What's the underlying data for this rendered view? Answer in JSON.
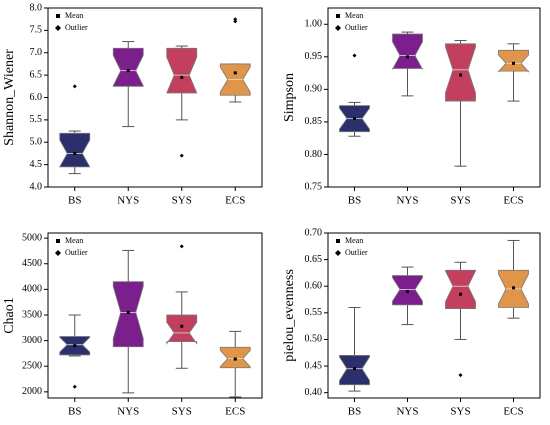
{
  "chart_data": [
    {
      "type": "box",
      "ylabel": "Shannon_Wiener",
      "legend": [
        "Mean",
        "Outlier"
      ],
      "categories": [
        "BS",
        "NYS",
        "SYS",
        "ECS"
      ],
      "colors": [
        "#2b2f6b",
        "#7b1f8c",
        "#c2405e",
        "#e0954a"
      ],
      "ylim": [
        4.0,
        8.0
      ],
      "yticks": [
        {
          "value": 4.0,
          "label": "4.0"
        },
        4.5,
        {
          "value": 5.0,
          "label": "5.0"
        },
        5.5,
        {
          "value": 6.0,
          "label": "6.0"
        },
        6.5,
        {
          "value": 7.0,
          "label": "7.0"
        },
        7.5,
        {
          "value": 8.0,
          "label": "8.0"
        }
      ],
      "boxes": [
        {
          "low": 4.3,
          "q1": 4.45,
          "median": 4.75,
          "q3": 5.2,
          "high": 5.25,
          "mean": 4.75,
          "outliers": [
            6.25
          ]
        },
        {
          "low": 5.35,
          "q1": 6.25,
          "median": 6.6,
          "q3": 7.1,
          "high": 7.25,
          "mean": 6.6,
          "outliers": []
        },
        {
          "low": 5.5,
          "q1": 6.1,
          "median": 6.5,
          "q3": 7.1,
          "high": 7.15,
          "mean": 6.45,
          "outliers": [
            4.7
          ]
        },
        {
          "low": 5.9,
          "q1": 6.05,
          "median": 6.4,
          "q3": 6.75,
          "high": 6.75,
          "mean": 6.55,
          "outliers": [
            7.7,
            7.75
          ]
        }
      ]
    },
    {
      "type": "box",
      "ylabel": "Simpson",
      "legend": [
        "Mean",
        "Outlier"
      ],
      "categories": [
        "BS",
        "NYS",
        "SYS",
        "ECS"
      ],
      "colors": [
        "#2b2f6b",
        "#7b1f8c",
        "#c2405e",
        "#e0954a"
      ],
      "ylim": [
        0.75,
        1.025
      ],
      "yticks": [
        0.75,
        {
          "value": 0.8,
          "label": "0.80"
        },
        0.85,
        {
          "value": 0.9,
          "label": "0.90"
        },
        0.95,
        {
          "value": 1.0,
          "label": "1.00"
        }
      ],
      "boxes": [
        {
          "low": 0.828,
          "q1": 0.835,
          "median": 0.855,
          "q3": 0.875,
          "high": 0.88,
          "mean": 0.855,
          "outliers": [
            0.952
          ]
        },
        {
          "low": 0.89,
          "q1": 0.932,
          "median": 0.952,
          "q3": 0.985,
          "high": 0.988,
          "mean": 0.95,
          "outliers": []
        },
        {
          "low": 0.782,
          "q1": 0.882,
          "median": 0.93,
          "q3": 0.97,
          "high": 0.975,
          "mean": 0.922,
          "outliers": []
        },
        {
          "low": 0.882,
          "q1": 0.928,
          "median": 0.94,
          "q3": 0.96,
          "high": 0.97,
          "mean": 0.94,
          "outliers": []
        }
      ]
    },
    {
      "type": "box",
      "ylabel": "Chao1",
      "legend": [
        "Mean",
        "Outlier"
      ],
      "categories": [
        "BS",
        "NYS",
        "SYS",
        "ECS"
      ],
      "colors": [
        "#2b2f6b",
        "#7b1f8c",
        "#c2405e",
        "#e0954a"
      ],
      "ylim": [
        1880,
        5100
      ],
      "yticks": [
        2000,
        2500,
        3000,
        3500,
        4000,
        4500,
        5000
      ],
      "boxes": [
        {
          "low": 2700,
          "q1": 2720,
          "median": 2920,
          "q3": 3080,
          "high": 3500,
          "mean": 2900,
          "outliers": [
            2100
          ]
        },
        {
          "low": 1980,
          "q1": 2880,
          "median": 3550,
          "q3": 4150,
          "high": 4760,
          "mean": 3550,
          "outliers": []
        },
        {
          "low": 2460,
          "q1": 2980,
          "median": 3150,
          "q3": 3500,
          "high": 3950,
          "mean": 3280,
          "outliers": [
            4840
          ]
        },
        {
          "low": 1900,
          "q1": 2470,
          "median": 2650,
          "q3": 2870,
          "high": 3180,
          "mean": 2640,
          "outliers": []
        }
      ]
    },
    {
      "type": "box",
      "ylabel": "pielou_evenness",
      "legend": [
        "Mean",
        "Outlier"
      ],
      "categories": [
        "BS",
        "NYS",
        "SYS",
        "ECS"
      ],
      "colors": [
        "#2b2f6b",
        "#7b1f8c",
        "#c2405e",
        "#e0954a"
      ],
      "ylim": [
        0.39,
        0.7
      ],
      "yticks": [
        {
          "value": 0.4,
          "label": "0.40"
        },
        0.45,
        {
          "value": 0.5,
          "label": "0.50"
        },
        0.55,
        {
          "value": 0.6,
          "label": "0.60"
        },
        0.65,
        {
          "value": 0.7,
          "label": "0.70"
        }
      ],
      "boxes": [
        {
          "low": 0.403,
          "q1": 0.415,
          "median": 0.445,
          "q3": 0.47,
          "high": 0.56,
          "mean": 0.445,
          "outliers": []
        },
        {
          "low": 0.528,
          "q1": 0.565,
          "median": 0.594,
          "q3": 0.62,
          "high": 0.636,
          "mean": 0.59,
          "outliers": []
        },
        {
          "low": 0.5,
          "q1": 0.558,
          "median": 0.6,
          "q3": 0.63,
          "high": 0.645,
          "mean": 0.585,
          "outliers": [
            0.433
          ]
        },
        {
          "low": 0.54,
          "q1": 0.56,
          "median": 0.595,
          "q3": 0.63,
          "high": 0.686,
          "mean": 0.597,
          "outliers": []
        }
      ]
    }
  ]
}
